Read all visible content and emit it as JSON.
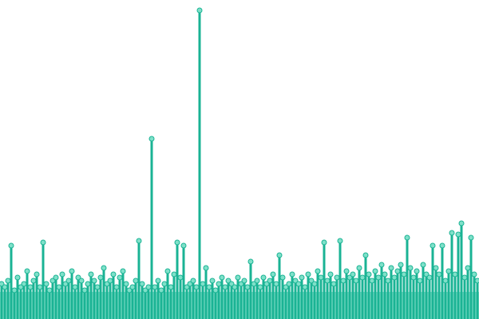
{
  "chart_data": {
    "type": "lollipop",
    "values": [
      11,
      10,
      12,
      23,
      9,
      13,
      10,
      11,
      15,
      10,
      12,
      14,
      10,
      24,
      11,
      9,
      12,
      13,
      10,
      14,
      11,
      12,
      15,
      10,
      13,
      12,
      9,
      11,
      14,
      12,
      10,
      13,
      16,
      11,
      12,
      14,
      10,
      13,
      15,
      11,
      9,
      10,
      12,
      24.5,
      11,
      9,
      10,
      56.5,
      10,
      12,
      9,
      11,
      15,
      10,
      14,
      24,
      13,
      23,
      10,
      11,
      12,
      10,
      96.75,
      11,
      16,
      10,
      12,
      9,
      11,
      13,
      10,
      12,
      11,
      10,
      13,
      11,
      12,
      10,
      18,
      11,
      12,
      10,
      13,
      11,
      12,
      14,
      11,
      20,
      13,
      10,
      11,
      14,
      12,
      11,
      13,
      10,
      14,
      12,
      11,
      15,
      13,
      24,
      12,
      14,
      11,
      13,
      24.5,
      12,
      15,
      13,
      14,
      12,
      16,
      13,
      20,
      14,
      12,
      15,
      13,
      17,
      14,
      12,
      16,
      13,
      15,
      17,
      14,
      25.5,
      16,
      13,
      15,
      12,
      17,
      14,
      13,
      23,
      16,
      14,
      23,
      12,
      15,
      27,
      14,
      26.5,
      30,
      13,
      16,
      25.5,
      14,
      12
    ],
    "ylim": [
      0,
      100
    ],
    "color": "#1ab394",
    "marker_fill": "#7fe0c9"
  }
}
